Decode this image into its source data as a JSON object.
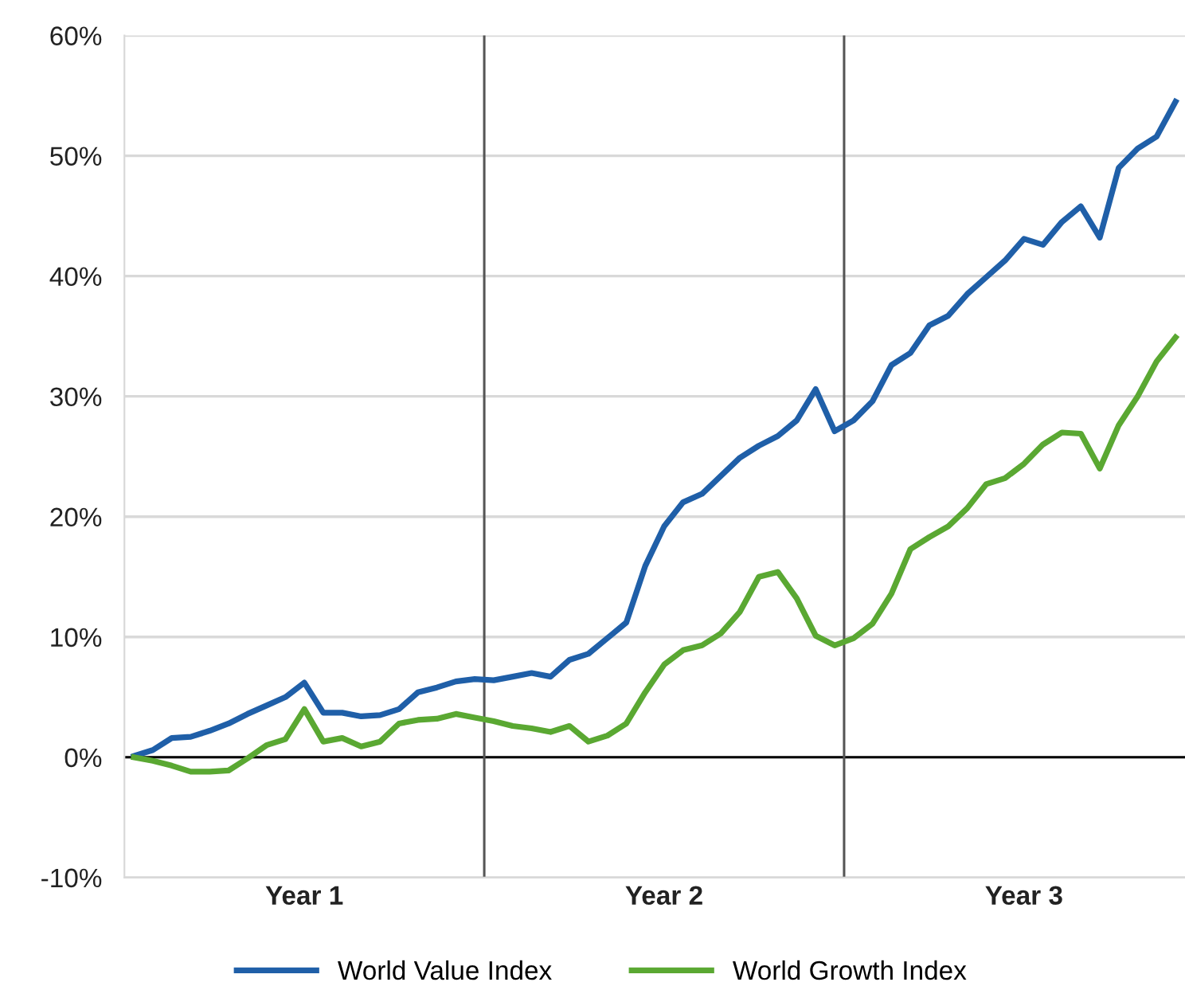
{
  "chart_data": {
    "type": "line",
    "categories": [
      null,
      null,
      null,
      null,
      null,
      null,
      null,
      null,
      null,
      "Year 1",
      null,
      null,
      null,
      null,
      null,
      null,
      null,
      null,
      null,
      null,
      null,
      null,
      null,
      null,
      null,
      null,
      null,
      null,
      "Year 2",
      null,
      null,
      null,
      null,
      null,
      null,
      null,
      null,
      null,
      null,
      null,
      null,
      null,
      null,
      null,
      null,
      null,
      null,
      "Year 3",
      null,
      null,
      null,
      null,
      null,
      null,
      null,
      null
    ],
    "series": [
      {
        "name": "World Value Index",
        "color": "#1f5fa8",
        "values": [
          0.1,
          0.6,
          1.6,
          1.7,
          2.2,
          2.8,
          3.6,
          4.3,
          5.0,
          6.2,
          3.7,
          3.7,
          3.4,
          3.5,
          4.0,
          5.4,
          5.8,
          6.3,
          6.5,
          6.4,
          6.7,
          7.0,
          6.7,
          8.1,
          8.6,
          9.9,
          11.2,
          15.9,
          19.2,
          21.2,
          21.9,
          23.4,
          24.9,
          25.9,
          26.7,
          28.0,
          30.6,
          27.1,
          28.0,
          29.6,
          32.6,
          33.6,
          35.9,
          36.7,
          38.5,
          39.9,
          41.3,
          43.1,
          42.6,
          44.5,
          45.8,
          43.2,
          49.0,
          50.6,
          51.6,
          54.5
        ]
      },
      {
        "name": "World Growth Index",
        "color": "#5aa832",
        "values": [
          0,
          -0.3,
          -0.7,
          -1.2,
          -1.2,
          -1.1,
          -0.1,
          1.0,
          1.5,
          4.0,
          1.3,
          1.6,
          0.9,
          1.3,
          2.8,
          3.1,
          3.2,
          3.6,
          3.3,
          3.0,
          2.6,
          2.4,
          2.1,
          2.6,
          1.3,
          1.8,
          2.8,
          5.4,
          7.7,
          8.9,
          9.3,
          10.3,
          12.1,
          15.0,
          15.4,
          13.2,
          10.1,
          9.3,
          9.9,
          11.1,
          13.6,
          17.3,
          18.3,
          19.2,
          20.7,
          22.7,
          23.2,
          24.4,
          26.0,
          27.0,
          26.9,
          24.0,
          27.6,
          30.0,
          32.9,
          34.9
        ]
      }
    ],
    "ylim": [
      -10,
      60
    ],
    "yticks": [
      {
        "value": -10,
        "label": "-10%"
      },
      {
        "value": 0,
        "label": "0%"
      },
      {
        "value": 10,
        "label": "10%"
      },
      {
        "value": 20,
        "label": "20%"
      },
      {
        "value": 30,
        "label": "30%"
      },
      {
        "value": 40,
        "label": "40%"
      },
      {
        "value": 50,
        "label": "50%"
      },
      {
        "value": 60,
        "label": "60%"
      }
    ],
    "ref_lines": [
      {
        "axis": "y",
        "value": 0,
        "color": "#000000"
      }
    ],
    "grid": "y",
    "legend": "bottom",
    "line_style": "solid",
    "marker": "none"
  }
}
